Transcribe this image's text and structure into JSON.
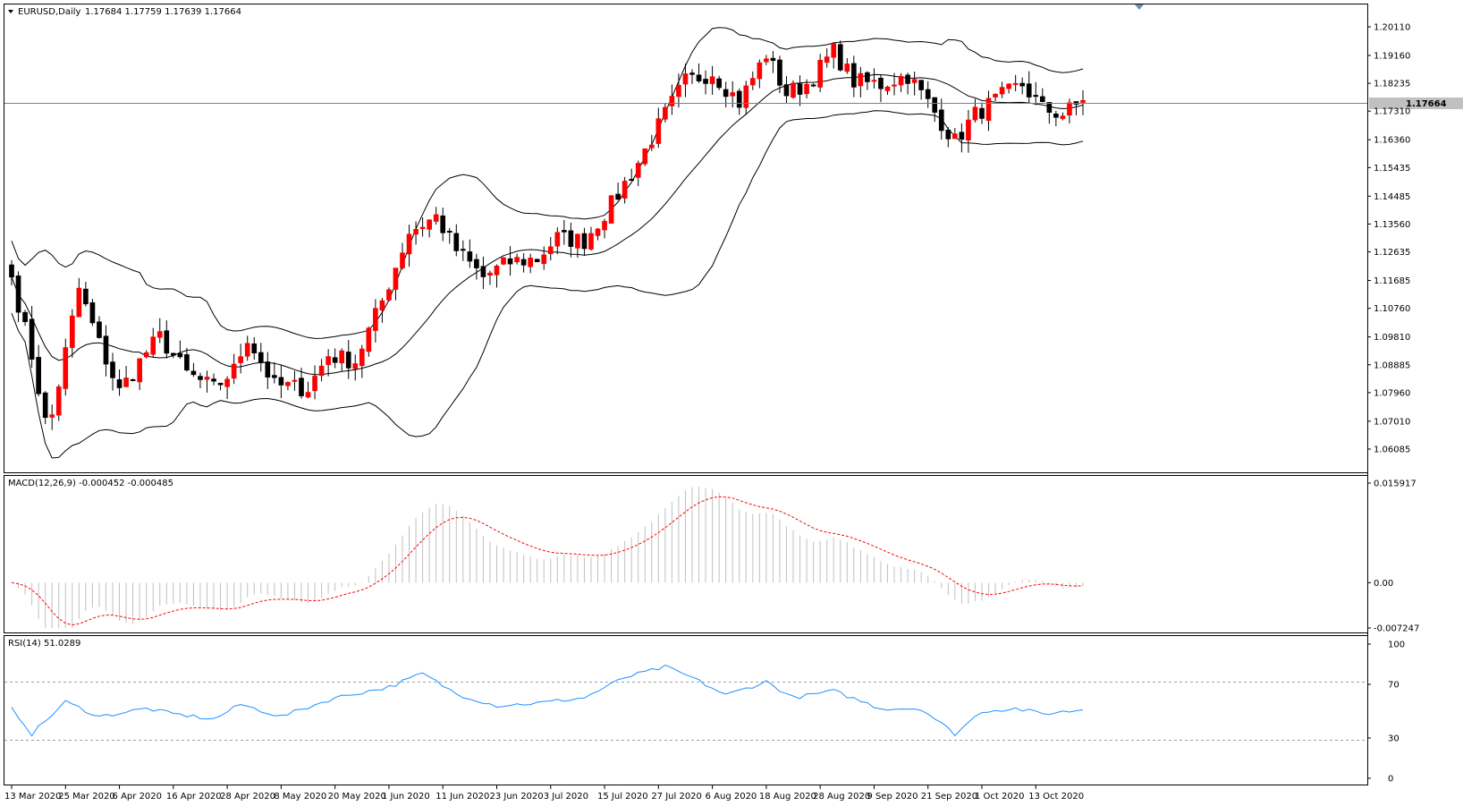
{
  "price_panel": {
    "symbol_line": "EURUSD,Daily",
    "ohlc": "1.17684 1.17759 1.17639 1.17664",
    "current_price": "1.17664",
    "price_levels": [
      "1.20110",
      "1.19160",
      "1.18235",
      "1.17310",
      "1.16360",
      "1.15435",
      "1.14485",
      "1.13560",
      "1.12635",
      "1.11685",
      "1.10760",
      "1.09810",
      "1.08885",
      "1.07960",
      "1.07010",
      "1.06085"
    ]
  },
  "macd_panel": {
    "title": "MACD(12,26,9) -0.000452 -0.000485",
    "levels": [
      "0.015917",
      "0.00",
      "-0.007247"
    ]
  },
  "rsi_panel": {
    "title": "RSI(14) 51.0289",
    "levels": [
      "100",
      "70",
      "30",
      "0"
    ]
  },
  "date_labels": [
    "13 Mar 2020",
    "25 Mar 2020",
    "6 Apr 2020",
    "16 Apr 2020",
    "28 Apr 2020",
    "8 May 2020",
    "20 May 2020",
    "1 Jun 2020",
    "11 Jun 2020",
    "23 Jun 2020",
    "3 Jul 2020",
    "15 Jul 2020",
    "27 Jul 2020",
    "6 Aug 2020",
    "18 Aug 2020",
    "28 Aug 2020",
    "9 Sep 2020",
    "21 Sep 2020",
    "1 Oct 2020",
    "13 Oct 2020"
  ],
  "colors": {
    "bull": "#ff0000",
    "bear": "#000000",
    "macd_hist": "#c0c0c0",
    "macd_signal": "#ff0000",
    "rsi_line": "#1e90ff",
    "bands": "#000000"
  },
  "chart_data": {
    "type": "candlestick",
    "symbol": "EURUSD",
    "timeframe": "Daily",
    "x_range": [
      "13 Mar 2020",
      "22 Oct 2020"
    ],
    "y_range": [
      1.06085,
      1.2011
    ],
    "close_anchors": [
      [
        "13 Mar 2020",
        1.118
      ],
      [
        "18 Mar 2020",
        1.092
      ],
      [
        "20 Mar 2020",
        1.07
      ],
      [
        "23 Mar 2020",
        1.072
      ],
      [
        "27 Mar 2020",
        1.114
      ],
      [
        "1 Apr 2020",
        1.096
      ],
      [
        "6 Apr 2020",
        1.08
      ],
      [
        "10 Apr 2020",
        1.093
      ],
      [
        "14 Apr 2020",
        1.098
      ],
      [
        "20 Apr 2020",
        1.086
      ],
      [
        "24 Apr 2020",
        1.081
      ],
      [
        "29 Apr 2020",
        1.087
      ],
      [
        "1 May 2020",
        1.098
      ],
      [
        "7 May 2020",
        1.082
      ],
      [
        "14 May 2020",
        1.081
      ],
      [
        "19 May 2020",
        1.092
      ],
      [
        "25 May 2020",
        1.09
      ],
      [
        "29 May 2020",
        1.11
      ],
      [
        "4 Jun 2020",
        1.133
      ],
      [
        "10 Jun 2020",
        1.138
      ],
      [
        "15 Jun 2020",
        1.127
      ],
      [
        "19 Jun 2020",
        1.118
      ],
      [
        "25 Jun 2020",
        1.123
      ],
      [
        "1 Jul 2020",
        1.124
      ],
      [
        "6 Jul 2020",
        1.131
      ],
      [
        "10 Jul 2020",
        1.13
      ],
      [
        "16 Jul 2020",
        1.142
      ],
      [
        "22 Jul 2020",
        1.156
      ],
      [
        "28 Jul 2020",
        1.172
      ],
      [
        "31 Jul 2020",
        1.183
      ],
      [
        "6 Aug 2020",
        1.186
      ],
      [
        "12 Aug 2020",
        1.176
      ],
      [
        "18 Aug 2020",
        1.192
      ],
      [
        "21 Aug 2020",
        1.179
      ],
      [
        "26 Aug 2020",
        1.182
      ],
      [
        "1 Sep 2020",
        1.193
      ],
      [
        "4 Sep 2020",
        1.183
      ],
      [
        "10 Sep 2020",
        1.182
      ],
      [
        "16 Sep 2020",
        1.185
      ],
      [
        "21 Sep 2020",
        1.176
      ],
      [
        "25 Sep 2020",
        1.163
      ],
      [
        "30 Sep 2020",
        1.172
      ],
      [
        "6 Oct 2020",
        1.178
      ],
      [
        "9 Oct 2020",
        1.182
      ],
      [
        "14 Oct 2020",
        1.174
      ],
      [
        "19 Oct 2020",
        1.172
      ],
      [
        "22 Oct 2020",
        1.1766
      ]
    ],
    "indicators": {
      "bollinger_bands": "20-period bands drawn on price panel",
      "macd": {
        "params": "12,26,9",
        "main": -0.000452,
        "signal": -0.000485,
        "range": [
          -0.007247,
          0.015917
        ]
      },
      "rsi": {
        "period": 14,
        "value": 51.0289,
        "levels": [
          30,
          70
        ],
        "range": [
          0,
          100
        ],
        "anchors": [
          [
            "13 Mar 2020",
            53
          ],
          [
            "18 Mar 2020",
            33
          ],
          [
            "25 Mar 2020",
            57
          ],
          [
            "1 Apr 2020",
            46
          ],
          [
            "10 Apr 2020",
            52
          ],
          [
            "16 Apr 2020",
            48
          ],
          [
            "24 Apr 2020",
            44
          ],
          [
            "30 Apr 2020",
            55
          ],
          [
            "8 May 2020",
            46
          ],
          [
            "20 May 2020",
            60
          ],
          [
            "1 Jun 2020",
            68
          ],
          [
            "8 Jun 2020",
            78
          ],
          [
            "15 Jun 2020",
            63
          ],
          [
            "23 Jun 2020",
            54
          ],
          [
            "1 Jul 2020",
            56
          ],
          [
            "10 Jul 2020",
            60
          ],
          [
            "20 Jul 2020",
            75
          ],
          [
            "28 Jul 2020",
            83
          ],
          [
            "3 Aug 2020",
            75
          ],
          [
            "10 Aug 2020",
            62
          ],
          [
            "18 Aug 2020",
            72
          ],
          [
            "24 Aug 2020",
            60
          ],
          [
            "1 Sep 2020",
            65
          ],
          [
            "10 Sep 2020",
            52
          ],
          [
            "18 Sep 2020",
            52
          ],
          [
            "25 Sep 2020",
            33
          ],
          [
            "1 Oct 2020",
            50
          ],
          [
            "8 Oct 2020",
            52
          ],
          [
            "14 Oct 2020",
            48
          ],
          [
            "22 Oct 2020",
            51
          ]
        ]
      }
    }
  }
}
